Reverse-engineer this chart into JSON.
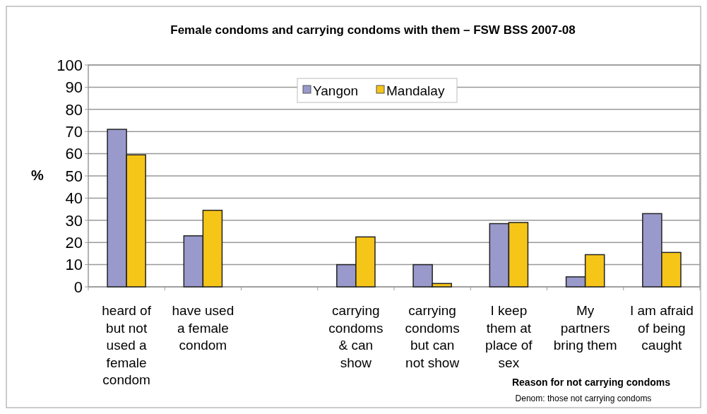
{
  "chart_data": {
    "type": "bar",
    "title": "Female condoms  and carrying condoms with them – FSW BSS 2007-08",
    "ylabel": "%",
    "categories": [
      "heard of but not used a female condom",
      "have used a female condom",
      null,
      "carrying condoms & can show",
      "carrying condoms but can not show",
      "I keep them at place of sex",
      "My partners bring them",
      "I am afraid of being caught"
    ],
    "series": [
      {
        "name": "Yangon",
        "color": "#9999cc",
        "values": [
          71,
          23,
          null,
          10,
          10,
          28.5,
          4.5,
          33
        ]
      },
      {
        "name": "Mandalay",
        "color": "#f5c518",
        "values": [
          59.5,
          34.5,
          null,
          22.5,
          1.5,
          29,
          14.5,
          15.5
        ]
      }
    ],
    "ylim": [
      0,
      100
    ],
    "yticks": [
      0,
      10,
      20,
      30,
      40,
      50,
      60,
      70,
      80,
      90,
      100
    ],
    "grid": "y",
    "legend": "top",
    "annotations": [
      "Reason for not carrying condoms",
      "Denom:  those not carrying condoms"
    ]
  }
}
